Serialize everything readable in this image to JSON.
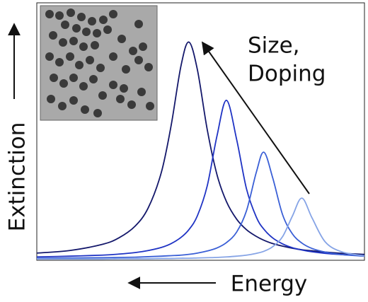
{
  "chart_data": {
    "type": "line",
    "x_label": "Energy",
    "y_label": "Extinction",
    "annotation": [
      "Size,",
      "Doping"
    ],
    "xlim": [
      0,
      100
    ],
    "ylim": [
      0,
      100
    ],
    "x": [
      0,
      10,
      20,
      25,
      30,
      34,
      38,
      41,
      44,
      46.4,
      49,
      52,
      55,
      57.9,
      61,
      64,
      67,
      69.3,
      72,
      75,
      78,
      80.9,
      84,
      88,
      93,
      100
    ],
    "series": [
      {
        "color": "#14186b",
        "values": [
          2.8,
          3.8,
          6.2,
          8.7,
          13.3,
          20.4,
          34.2,
          52.5,
          75.7,
          85,
          74.3,
          51.0,
          33.3,
          22.8,
          16.0,
          11.9,
          9.3,
          7.8,
          6.5,
          5.5,
          4.7,
          4.1,
          3.7,
          3.2,
          2.7,
          2.3
        ]
      },
      {
        "color": "#1f33c4",
        "values": [
          1.3,
          1.6,
          2.0,
          2.4,
          3.0,
          3.8,
          5.0,
          6.5,
          8.9,
          11.9,
          17.3,
          28.9,
          48.5,
          62.3,
          47.0,
          27.8,
          16.8,
          12.1,
          8.7,
          6.4,
          4.9,
          4.0,
          3.3,
          2.7,
          2.2,
          1.8
        ]
      },
      {
        "color": "#3a5fd6",
        "values": [
          0.8,
          0.9,
          1.0,
          1.1,
          1.2,
          1.4,
          1.6,
          1.8,
          2.0,
          2.3,
          2.8,
          3.6,
          4.8,
          6.9,
          11.0,
          19.3,
          34.3,
          42.1,
          32.1,
          17.8,
          10.3,
          6.7,
          4.6,
          3.2,
          2.2,
          1.6
        ]
      },
      {
        "color": "#86a4e6",
        "values": [
          0.5,
          0.5,
          0.5,
          0.6,
          0.6,
          0.6,
          0.7,
          0.7,
          0.8,
          0.8,
          0.9,
          1.0,
          1.1,
          1.3,
          1.6,
          2.0,
          2.7,
          3.5,
          5.3,
          9.2,
          17.2,
          24.2,
          16.5,
          7.2,
          3.3,
          1.7
        ]
      }
    ]
  }
}
